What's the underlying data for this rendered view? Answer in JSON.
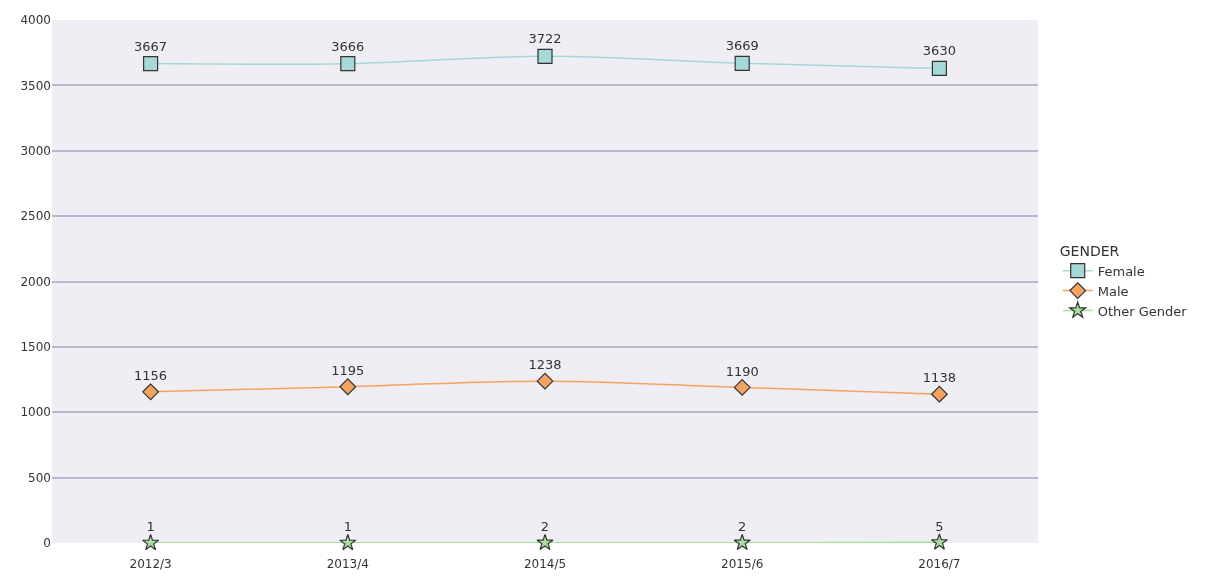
{
  "chart_data": {
    "type": "line",
    "categories": [
      "2012/3",
      "2013/4",
      "2014/5",
      "2015/6",
      "2016/7"
    ],
    "legend_title": "GENDER",
    "series": [
      {
        "name": "Female",
        "color": "#a6d8d8",
        "marker": "square",
        "values": [
          3667,
          3666,
          3722,
          3669,
          3630
        ]
      },
      {
        "name": "Male",
        "color": "#f4a460",
        "marker": "diamond",
        "values": [
          1156,
          1195,
          1238,
          1190,
          1138
        ]
      },
      {
        "name": "Other Gender",
        "color": "#a8e0a0",
        "marker": "star",
        "values": [
          1,
          1,
          2,
          2,
          5
        ]
      }
    ],
    "ylim": [
      0,
      4000
    ],
    "yticks": [
      0,
      500,
      1000,
      1500,
      2000,
      2500,
      3000,
      3500,
      4000
    ],
    "grid": "y",
    "legend": "right",
    "data_labels": true
  }
}
